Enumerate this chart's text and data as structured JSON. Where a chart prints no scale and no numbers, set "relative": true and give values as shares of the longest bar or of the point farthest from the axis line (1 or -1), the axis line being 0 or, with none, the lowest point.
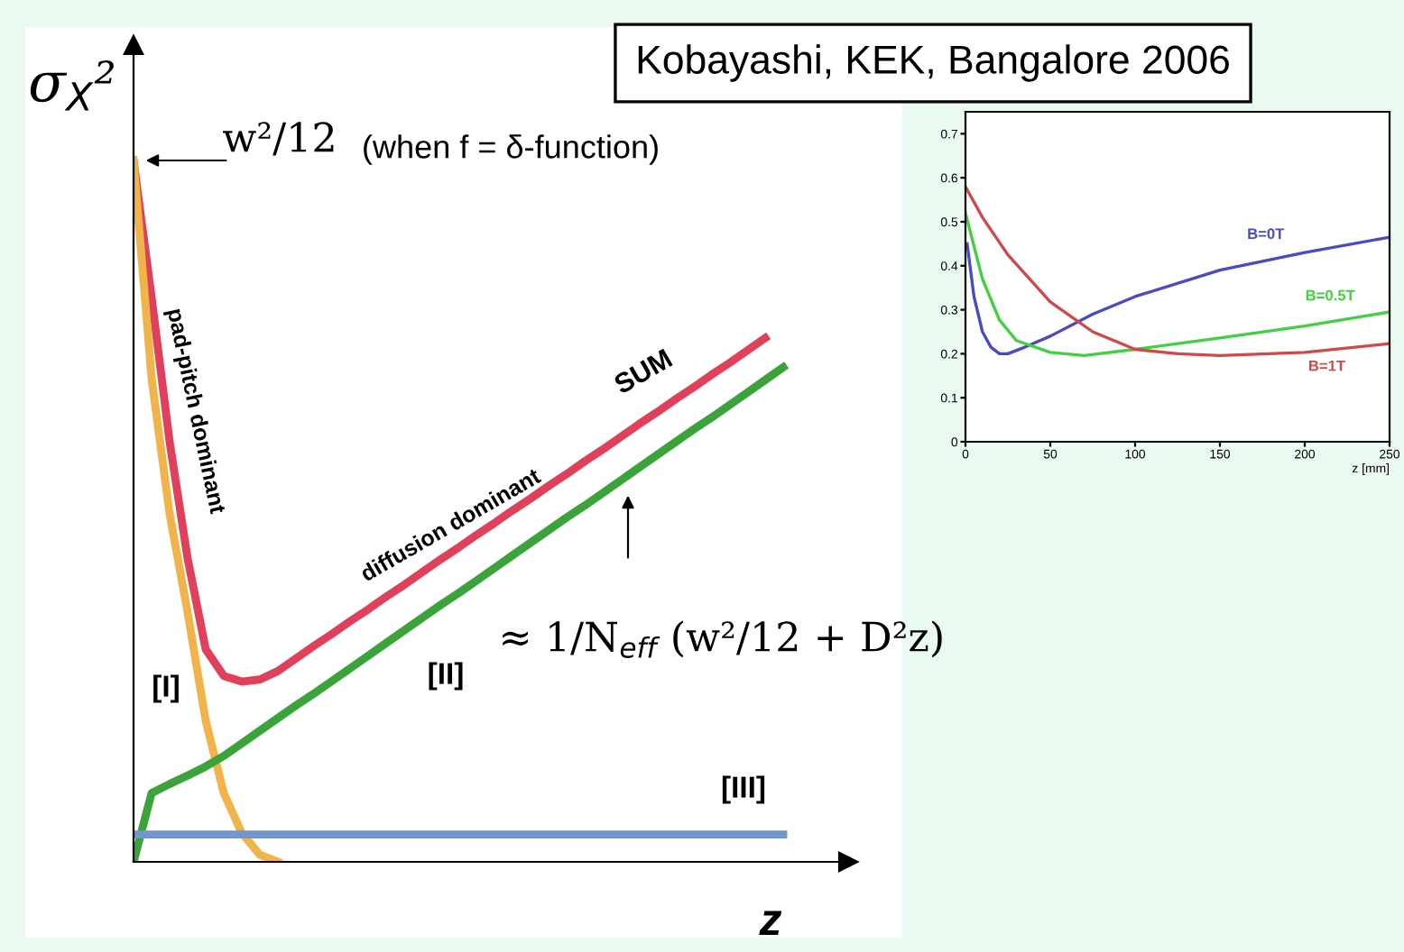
{
  "chart_data": [
    {
      "type": "line",
      "relative": true,
      "legend": false,
      "grid": false,
      "ylabel": "σ$_{X}$²",
      "xlabel": "z",
      "categories": [
        null,
        null,
        null,
        null,
        null,
        null,
        null,
        null,
        null,
        null,
        null,
        null,
        null,
        null,
        null,
        null,
        null,
        null,
        null,
        null,
        null,
        null,
        null,
        null,
        null,
        null,
        null,
        null,
        null,
        null,
        null,
        null,
        null,
        null,
        null,
        null,
        null
      ],
      "series": [
        {
          "name": "SUM",
          "color": "#e0405a",
          "values": [
            1.0,
            0.805,
            0.599,
            0.432,
            0.303,
            0.265,
            0.257,
            0.26,
            0.272,
            0.29,
            0.308,
            0.325,
            0.343,
            0.36,
            0.378,
            0.395,
            0.413,
            0.431,
            0.448,
            0.466,
            0.483,
            0.501,
            0.518,
            0.536,
            0.553,
            0.571,
            0.588,
            0.606,
            0.624,
            0.641,
            0.659,
            0.676,
            0.694,
            0.711,
            0.729,
            0.747,
            null
          ]
        },
        {
          "name": "[I]",
          "color": "#f0b44a",
          "values": [
            1.0,
            0.689,
            0.496,
            0.355,
            0.201,
            0.098,
            0.041,
            0.01,
            0.0,
            null,
            null,
            null,
            null,
            null,
            null,
            null,
            null,
            null,
            null,
            null,
            null,
            null,
            null,
            null,
            null,
            null,
            null,
            null,
            null,
            null,
            null,
            null,
            null,
            null,
            null,
            null,
            null
          ]
        },
        {
          "name": "[II]",
          "color": "#3aa33a",
          "values": [
            0.0,
            0.098,
            0.111,
            0.123,
            0.136,
            0.151,
            0.169,
            0.187,
            0.205,
            0.223,
            0.24,
            0.258,
            0.276,
            0.294,
            0.312,
            0.33,
            0.348,
            0.366,
            0.383,
            0.401,
            0.419,
            0.437,
            0.455,
            0.473,
            0.491,
            0.508,
            0.526,
            0.544,
            0.562,
            0.58,
            0.598,
            0.616,
            0.633,
            0.651,
            0.669,
            0.687,
            0.705
          ]
        },
        {
          "name": "[III]",
          "color": "#6f96d0",
          "values": [
            0.039,
            0.039,
            0.039,
            0.039,
            0.039,
            0.039,
            0.039,
            0.039,
            0.039,
            0.039,
            0.039,
            0.039,
            0.039,
            0.039,
            0.039,
            0.039,
            0.039,
            0.039,
            0.039,
            0.039,
            0.039,
            0.039,
            0.039,
            0.039,
            0.039,
            0.039,
            0.039,
            0.039,
            0.039,
            0.039,
            0.039,
            0.039,
            0.039,
            0.039,
            0.039,
            0.039,
            0.039
          ]
        }
      ],
      "annotations": [
        "w²/12",
        "(when f = δ-function)",
        "pad-pitch dominant",
        "diffusion dominant",
        "≈ 1/N$_{eff}$ (w²/12 + D²z)",
        "Kobayashi, KEK, Bangalore 2006"
      ]
    },
    {
      "type": "line",
      "legend": false,
      "grid": false,
      "xlabel": "z [mm]",
      "xlim": [
        0,
        250
      ],
      "xticks": [
        0,
        50,
        100,
        150,
        200,
        250
      ],
      "ylim": [
        0,
        0.75
      ],
      "yticks": [
        0,
        0.1,
        0.2,
        0.3,
        0.4,
        0.5,
        0.6,
        0.7
      ],
      "series": [
        {
          "name": "B=0T",
          "color": "#4a4ac8",
          "x": [
            1,
            5,
            10,
            15,
            20,
            25,
            35,
            50,
            75,
            100,
            150,
            200,
            250
          ],
          "values": [
            0.45,
            0.33,
            0.25,
            0.215,
            0.2,
            0.2,
            0.215,
            0.24,
            0.29,
            0.33,
            0.39,
            0.43,
            0.465
          ]
        },
        {
          "name": "B=0.5T",
          "color": "#40d040",
          "x": [
            0,
            10,
            20,
            30,
            50,
            70,
            100,
            150,
            200,
            250
          ],
          "values": [
            0.52,
            0.37,
            0.277,
            0.23,
            0.203,
            0.196,
            0.21,
            0.236,
            0.263,
            0.295
          ]
        },
        {
          "name": "B=1T",
          "color": "#d04848",
          "x": [
            0,
            10,
            25,
            50,
            75,
            100,
            125,
            150,
            200,
            250
          ],
          "values": [
            0.58,
            0.51,
            0.425,
            0.318,
            0.25,
            0.21,
            0.2,
            0.196,
            0.203,
            0.223
          ]
        }
      ]
    }
  ]
}
